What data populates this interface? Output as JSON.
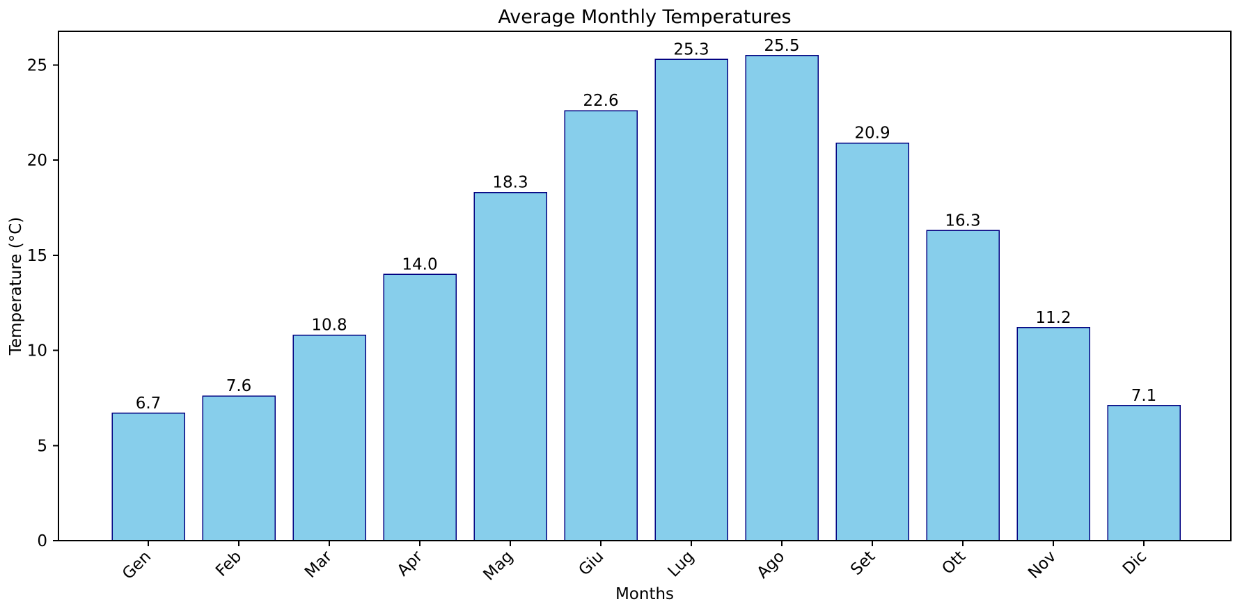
{
  "chart_data": {
    "type": "bar",
    "title": "Average Monthly Temperatures",
    "xlabel": "Months",
    "ylabel": "Temperature (°C)",
    "categories": [
      "Gen",
      "Feb",
      "Mar",
      "Apr",
      "Mag",
      "Giu",
      "Lug",
      "Ago",
      "Set",
      "Ott",
      "Nov",
      "Dic"
    ],
    "values": [
      6.7,
      7.6,
      10.8,
      14.0,
      18.3,
      22.6,
      25.3,
      25.5,
      20.9,
      16.3,
      11.2,
      7.1
    ],
    "value_labels": [
      "6.7",
      "7.6",
      "10.8",
      "14.0",
      "18.3",
      "22.6",
      "25.3",
      "25.5",
      "20.9",
      "16.3",
      "11.2",
      "7.1"
    ],
    "yticks": [
      "0",
      "5",
      "10",
      "15",
      "20",
      "25"
    ],
    "ytick_values": [
      0,
      5,
      10,
      15,
      20,
      25
    ],
    "ylim": [
      0,
      26.775
    ],
    "xtick_rotation": 45,
    "grid": false,
    "legend_position": "none",
    "colors": {
      "bar_fill": "#87CEEB",
      "bar_stroke": "#000080",
      "spine": "#000000",
      "text": "#000000",
      "background": "#ffffff"
    }
  }
}
